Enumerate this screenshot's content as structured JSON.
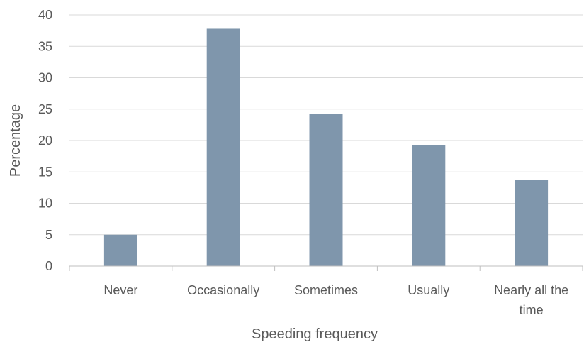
{
  "chart_data": {
    "type": "bar",
    "categories": [
      "Never",
      "Occasionally",
      "Sometimes",
      "Usually",
      "Nearly all the time"
    ],
    "category_label_lines": [
      [
        "Never"
      ],
      [
        "Occasionally"
      ],
      [
        "Sometimes"
      ],
      [
        "Usually"
      ],
      [
        "Nearly all the",
        "time"
      ]
    ],
    "values": [
      5,
      37.8,
      24.2,
      19.3,
      13.7
    ],
    "xlabel": "Speeding frequency",
    "ylabel": "Percentage",
    "ylim": [
      0,
      40
    ],
    "yticks": [
      0,
      5,
      10,
      15,
      20,
      25,
      30,
      35,
      40
    ],
    "grid": true,
    "bar_color": "#7f96ac"
  }
}
